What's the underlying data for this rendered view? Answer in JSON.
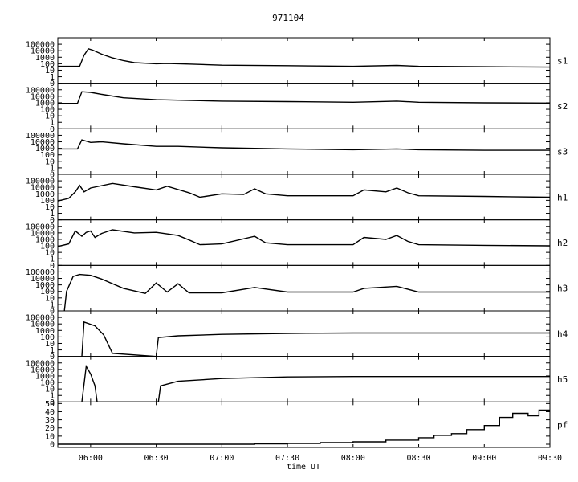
{
  "chart_data": {
    "type": "line",
    "title": "971104",
    "xlabel": "time UT",
    "x_ticks": [
      "06:00",
      "06:30",
      "07:00",
      "07:30",
      "08:00",
      "08:30",
      "09:00",
      "09:30"
    ],
    "x_range": [
      "05:45",
      "09:30"
    ],
    "log_tick_labels": [
      "100000",
      "10000",
      "1000",
      "100",
      "10",
      "1",
      "0"
    ],
    "pf_tick_labels": [
      "50",
      "40",
      "30",
      "20",
      "10",
      "0"
    ],
    "panels": [
      {
        "label": "s1",
        "scale": "log",
        "ylim": [
          0.1,
          1000000
        ],
        "points": [
          [
            "05:45",
            40
          ],
          [
            "05:55",
            40
          ],
          [
            "05:57",
            2000
          ],
          [
            "05:59",
            20000
          ],
          [
            "06:01",
            12000
          ],
          [
            "06:05",
            3000
          ],
          [
            "06:10",
            800
          ],
          [
            "06:15",
            300
          ],
          [
            "06:20",
            150
          ],
          [
            "06:30",
            100
          ],
          [
            "06:35",
            110
          ],
          [
            "06:45",
            90
          ],
          [
            "07:00",
            60
          ],
          [
            "07:30",
            50
          ],
          [
            "08:00",
            40
          ],
          [
            "08:20",
            55
          ],
          [
            "08:30",
            40
          ],
          [
            "09:00",
            35
          ],
          [
            "09:30",
            30
          ]
        ]
      },
      {
        "label": "s2",
        "scale": "log",
        "ylim": [
          0.1,
          1000000
        ],
        "points": [
          [
            "05:45",
            800
          ],
          [
            "05:54",
            800
          ],
          [
            "05:56",
            50000
          ],
          [
            "06:00",
            40000
          ],
          [
            "06:05",
            20000
          ],
          [
            "06:15",
            6000
          ],
          [
            "06:30",
            3000
          ],
          [
            "06:40",
            2500
          ],
          [
            "07:00",
            1800
          ],
          [
            "07:30",
            1500
          ],
          [
            "08:00",
            1200
          ],
          [
            "08:20",
            1800
          ],
          [
            "08:30",
            1200
          ],
          [
            "09:00",
            1000
          ],
          [
            "09:30",
            900
          ]
        ]
      },
      {
        "label": "s3",
        "scale": "log",
        "ylim": [
          0.1,
          1000000
        ],
        "points": [
          [
            "05:45",
            800
          ],
          [
            "05:54",
            800
          ],
          [
            "05:56",
            20000
          ],
          [
            "06:00",
            8000
          ],
          [
            "06:05",
            10000
          ],
          [
            "06:15",
            5000
          ],
          [
            "06:30",
            2000
          ],
          [
            "06:40",
            2000
          ],
          [
            "07:00",
            1200
          ],
          [
            "07:30",
            800
          ],
          [
            "08:00",
            600
          ],
          [
            "08:20",
            800
          ],
          [
            "08:30",
            600
          ],
          [
            "09:00",
            500
          ],
          [
            "09:30",
            500
          ]
        ]
      },
      {
        "label": "h1",
        "scale": "log",
        "ylim": [
          0.1,
          1000000
        ],
        "points": [
          [
            "05:45",
            80
          ],
          [
            "05:50",
            200
          ],
          [
            "05:53",
            2000
          ],
          [
            "05:55",
            20000
          ],
          [
            "05:57",
            2000
          ],
          [
            "06:00",
            8000
          ],
          [
            "06:10",
            40000
          ],
          [
            "06:20",
            12000
          ],
          [
            "06:30",
            4000
          ],
          [
            "06:35",
            15000
          ],
          [
            "06:45",
            1500
          ],
          [
            "06:50",
            300
          ],
          [
            "07:00",
            1000
          ],
          [
            "07:10",
            800
          ],
          [
            "07:15",
            6000
          ],
          [
            "07:20",
            1000
          ],
          [
            "07:30",
            500
          ],
          [
            "08:00",
            500
          ],
          [
            "08:05",
            4000
          ],
          [
            "08:15",
            2000
          ],
          [
            "08:20",
            8000
          ],
          [
            "08:25",
            1500
          ],
          [
            "08:30",
            500
          ],
          [
            "09:00",
            400
          ],
          [
            "09:30",
            300
          ]
        ]
      },
      {
        "label": "h2",
        "scale": "log",
        "ylim": [
          0.1,
          1000000
        ],
        "points": [
          [
            "05:45",
            80
          ],
          [
            "05:50",
            200
          ],
          [
            "05:53",
            20000
          ],
          [
            "05:56",
            3000
          ],
          [
            "05:58",
            12000
          ],
          [
            "06:00",
            20000
          ],
          [
            "06:02",
            2000
          ],
          [
            "06:05",
            8000
          ],
          [
            "06:10",
            30000
          ],
          [
            "06:20",
            10000
          ],
          [
            "06:30",
            12000
          ],
          [
            "06:40",
            4000
          ],
          [
            "06:45",
            800
          ],
          [
            "06:50",
            150
          ],
          [
            "07:00",
            200
          ],
          [
            "07:15",
            3000
          ],
          [
            "07:20",
            300
          ],
          [
            "07:30",
            150
          ],
          [
            "08:00",
            150
          ],
          [
            "08:05",
            2000
          ],
          [
            "08:15",
            1000
          ],
          [
            "08:20",
            4000
          ],
          [
            "08:25",
            500
          ],
          [
            "08:30",
            150
          ],
          [
            "09:00",
            120
          ],
          [
            "09:30",
            100
          ]
        ]
      },
      {
        "label": "h3",
        "scale": "log",
        "ylim": [
          0.1,
          1000000
        ],
        "points": [
          [
            "05:48",
            0
          ],
          [
            "05:49",
            100
          ],
          [
            "05:52",
            20000
          ],
          [
            "05:55",
            40000
          ],
          [
            "06:00",
            30000
          ],
          [
            "06:05",
            8000
          ],
          [
            "06:15",
            300
          ],
          [
            "06:25",
            50
          ],
          [
            "06:30",
            2000
          ],
          [
            "06:35",
            80
          ],
          [
            "06:40",
            1500
          ],
          [
            "06:45",
            60
          ],
          [
            "07:00",
            60
          ],
          [
            "07:15",
            400
          ],
          [
            "07:30",
            80
          ],
          [
            "08:00",
            80
          ],
          [
            "08:05",
            300
          ],
          [
            "08:20",
            600
          ],
          [
            "08:30",
            80
          ],
          [
            "09:00",
            80
          ],
          [
            "09:30",
            80
          ]
        ]
      },
      {
        "label": "h4",
        "scale": "log",
        "ylim": [
          0.1,
          1000000
        ],
        "points": [
          [
            "05:56",
            0
          ],
          [
            "05:57",
            20000
          ],
          [
            "06:02",
            5000
          ],
          [
            "06:06",
            200
          ],
          [
            "06:10",
            0.3
          ],
          [
            "06:30",
            0
          ],
          [
            "06:31",
            80
          ],
          [
            "06:40",
            150
          ],
          [
            "07:00",
            250
          ],
          [
            "07:30",
            350
          ],
          [
            "08:00",
            400
          ],
          [
            "08:30",
            400
          ],
          [
            "09:00",
            400
          ],
          [
            "09:30",
            400
          ]
        ]
      },
      {
        "label": "h5",
        "scale": "log",
        "ylim": [
          0.1,
          1000000
        ],
        "points": [
          [
            "05:56",
            0
          ],
          [
            "05:58",
            30000
          ],
          [
            "06:00",
            2000
          ],
          [
            "06:02",
            30
          ],
          [
            "06:03",
            0
          ],
          [
            "06:31",
            0
          ],
          [
            "06:32",
            30
          ],
          [
            "06:40",
            150
          ],
          [
            "07:00",
            400
          ],
          [
            "07:30",
            700
          ],
          [
            "08:00",
            800
          ],
          [
            "08:30",
            800
          ],
          [
            "09:00",
            800
          ],
          [
            "09:30",
            800
          ]
        ]
      },
      {
        "label": "pf",
        "scale": "linear",
        "ylim": [
          0,
          50
        ],
        "points": [
          [
            "05:45",
            0
          ],
          [
            "07:00",
            0
          ],
          [
            "07:15",
            0.5
          ],
          [
            "07:30",
            1
          ],
          [
            "07:45",
            2
          ],
          [
            "08:00",
            3
          ],
          [
            "08:15",
            5
          ],
          [
            "08:30",
            8
          ],
          [
            "08:37",
            11
          ],
          [
            "08:45",
            13
          ],
          [
            "08:52",
            18
          ],
          [
            "09:00",
            23
          ],
          [
            "09:07",
            33
          ],
          [
            "09:13",
            38
          ],
          [
            "09:20",
            35
          ],
          [
            "09:25",
            42
          ],
          [
            "09:30",
            42
          ]
        ]
      }
    ]
  }
}
